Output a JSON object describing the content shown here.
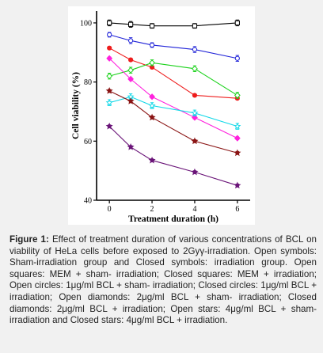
{
  "chart_data": {
    "type": "line",
    "xlabel": "Treatment duration (h)",
    "ylabel": "Cell viability (%)",
    "xlim": [
      -0.6,
      6.6
    ],
    "ylim": [
      40,
      104
    ],
    "xticks": [
      0,
      2,
      4,
      6
    ],
    "yticks": [
      40,
      60,
      80,
      100
    ],
    "x": [
      0,
      1,
      2,
      4,
      6
    ],
    "grid": false,
    "series": [
      {
        "marker": "open-square",
        "color": "#000000",
        "values": [
          100,
          99.5,
          99,
          99,
          100
        ],
        "err": [
          1,
          1,
          0.8,
          0.8,
          1
        ]
      },
      {
        "marker": "open-circle",
        "color": "#1f22d8",
        "values": [
          96,
          94,
          92.5,
          91,
          88
        ],
        "err": [
          0.8,
          1,
          0.8,
          1,
          1
        ]
      },
      {
        "marker": "filled-circle",
        "color": "#ee1c1c",
        "values": [
          91.5,
          87.5,
          85,
          75.5,
          74.5
        ],
        "err": [
          0.5,
          0.5,
          0.5,
          0.5,
          0.5
        ]
      },
      {
        "marker": "open-diamond",
        "color": "#1bd21b",
        "values": [
          82,
          84,
          86.5,
          84.5,
          75.5
        ],
        "err": [
          1,
          1,
          1,
          1,
          1
        ]
      },
      {
        "marker": "filled-diamond",
        "color": "#ff22dd",
        "values": [
          88,
          81,
          75,
          68,
          61
        ],
        "err": [
          0.5,
          0.5,
          0.5,
          0.5,
          0.5
        ]
      },
      {
        "marker": "open-star",
        "color": "#11d8e8",
        "values": [
          73,
          75,
          72,
          69.5,
          65
        ],
        "err": [
          1,
          1,
          1,
          1,
          1
        ]
      },
      {
        "marker": "filled-star",
        "color": "#8a1414",
        "values": [
          77,
          73.5,
          68,
          60,
          56
        ],
        "err": [
          0.5,
          0.5,
          0.5,
          0.5,
          0.5
        ]
      },
      {
        "marker": "filled-star",
        "color": "#6a1478",
        "values": [
          65,
          58,
          53.5,
          49.5,
          45
        ],
        "err": [
          0.5,
          0.5,
          0.5,
          0.5,
          0.5
        ]
      }
    ]
  },
  "caption": {
    "label": "Figure 1:",
    "text": " Effect of treatment duration of various concentrations of BCL on viability of HeLa cells before exposed to 2Gyγ-irradiation. Open symbols: Sham-irradiation group and Closed symbols: irradiation group. Open squares: MEM + sham- irradiation; Closed squares: MEM + irradiation; Open circles: 1μg/ml BCL + sham- irradiation; Closed circles: 1μg/ml BCL + irradiation; Open diamonds: 2μg/ml BCL + sham- irradiation; Closed diamonds: 2μg/ml BCL + irradiation; Open stars: 4μg/ml BCL + sham-irradiation and Closed stars: 4μg/ml BCL + irradiation."
  }
}
